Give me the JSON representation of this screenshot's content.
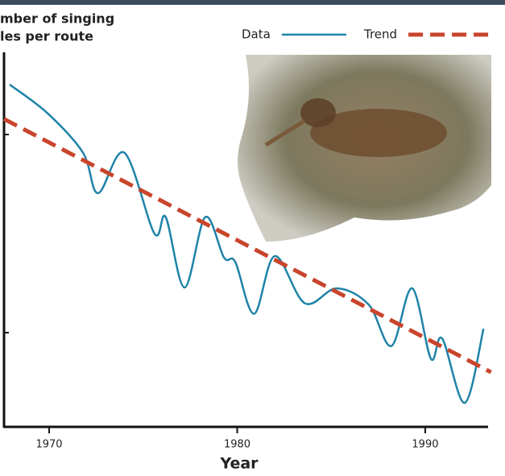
{
  "chart_data": {
    "type": "line",
    "title_lines": [
      "mber of singing",
      "les per route"
    ],
    "x_label": "Year",
    "xlim": [
      1967.6,
      1993.3
    ],
    "xticks": [
      1970,
      1980,
      1990
    ],
    "ylim": [
      0,
      5
    ],
    "series": [
      {
        "name": "Data",
        "color": "#1f83a8",
        "dashed": false,
        "x": [
          1967.9,
          1969.9,
          1971.8,
          1972.6,
          1974.0,
          1975.6,
          1976.2,
          1977.2,
          1978.3,
          1979.3,
          1979.9,
          1980.9,
          1982.0,
          1983.6,
          1985.3,
          1987.0,
          1988.2,
          1989.3,
          1990.3,
          1990.9,
          1992.1,
          1993.1
        ],
        "values": [
          4.57,
          4.19,
          3.66,
          3.12,
          3.66,
          2.58,
          2.8,
          1.86,
          2.8,
          2.26,
          2.2,
          1.51,
          2.28,
          1.65,
          1.85,
          1.63,
          1.08,
          1.85,
          0.91,
          1.18,
          0.32,
          1.31
        ]
      },
      {
        "name": "Trend",
        "color": "#c8452c",
        "dashed": true,
        "x": [
          1967.6,
          1993.5
        ],
        "values": [
          4.11,
          0.73
        ]
      }
    ]
  }
}
